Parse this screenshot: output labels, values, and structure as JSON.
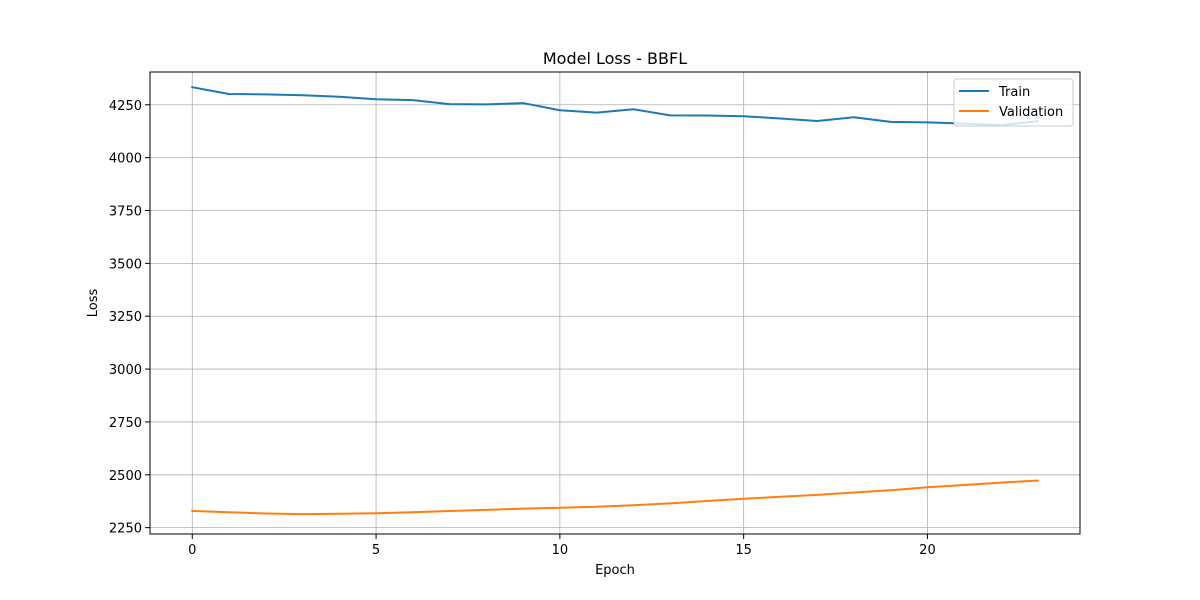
{
  "chart_data": {
    "type": "line",
    "title": "Model Loss - BBFL",
    "xlabel": "Epoch",
    "ylabel": "Loss",
    "xlim": [
      -1.15,
      24.15
    ],
    "ylim": [
      2220,
      4405
    ],
    "x_ticks": [
      0,
      5,
      10,
      15,
      20
    ],
    "y_ticks": [
      2250,
      2500,
      2750,
      3000,
      3250,
      3500,
      3750,
      4000,
      4250
    ],
    "grid": true,
    "legend_position": "top-right",
    "x": [
      0,
      1,
      2,
      3,
      4,
      5,
      6,
      7,
      8,
      9,
      10,
      11,
      12,
      13,
      14,
      15,
      16,
      17,
      18,
      19,
      20,
      21,
      22,
      23
    ],
    "series": [
      {
        "name": "Train",
        "color": "#1f77b4",
        "values": [
          4333,
          4301,
          4299,
          4295,
          4288,
          4276,
          4272,
          4253,
          4252,
          4258,
          4224,
          4213,
          4229,
          4200,
          4199,
          4196,
          4185,
          4173,
          4191,
          4169,
          4167,
          4161,
          4154,
          4172
        ]
      },
      {
        "name": "Validation",
        "color": "#ff7f0e",
        "values": [
          2329,
          2323,
          2317,
          2314,
          2316,
          2318,
          2323,
          2329,
          2334,
          2340,
          2344,
          2349,
          2356,
          2365,
          2376,
          2387,
          2396,
          2405,
          2416,
          2427,
          2441,
          2452,
          2463,
          2473
        ]
      }
    ]
  }
}
